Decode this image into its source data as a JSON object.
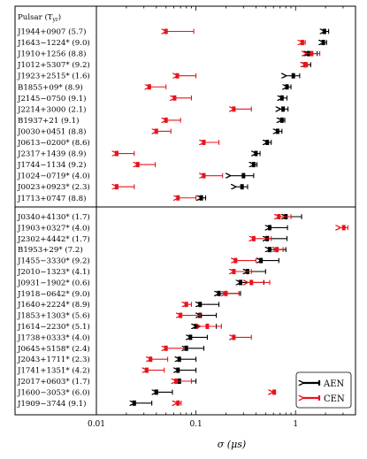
{
  "chart_data": {
    "type": "scatter",
    "xscale": "log",
    "xlim": [
      0.01,
      4
    ],
    "xlabel": "σ (μs)",
    "xticks": [
      "0.01",
      "0.1",
      "1"
    ],
    "header": "Pulsar (T",
    "header_sub": "yr",
    "header_close": ")",
    "legend": {
      "placement": "bottom-right",
      "aen": "AEN",
      "cen": "CEN"
    },
    "colors": {
      "aen": "#000000",
      "cen": "#e8141c"
    },
    "groups": [
      {
        "rows": [
          {
            "label": "J1944+0907 (5.7)",
            "aen": [
              1.95,
              1.95,
              2.15
            ],
            "cen": [
              0.05,
              0.05,
              0.095
            ]
          },
          {
            "label": "J1643−1224* (9.0)",
            "aen": [
              1.9,
              1.9,
              2.05
            ],
            "cen": [
              1.17,
              1.17,
              1.25
            ]
          },
          {
            "label": "J1910+1256 (8.8)",
            "aen": [
              1.35,
              1.35,
              1.65
            ],
            "cen": [
              1.45,
              1.28,
              1.75
            ]
          },
          {
            "label": "J1012+5307* (9.2)",
            "aen": [
              1.25,
              1.25,
              1.42
            ],
            "cen": [
              1.25,
              1.25,
              1.32
            ]
          },
          {
            "label": "J1923+2515* (1.6)",
            "aen": [
              0.95,
              0.8,
              1.1
            ],
            "cen": [
              0.065,
              0.065,
              0.1
            ]
          },
          {
            "label": "B1855+09* (8.9)",
            "aen": [
              0.82,
              0.82,
              0.9
            ],
            "cen": [
              0.034,
              0.034,
              0.05
            ]
          },
          {
            "label": "J2145−0750 (9.1)",
            "aen": [
              0.73,
              0.73,
              0.82
            ],
            "cen": [
              0.061,
              0.061,
              0.09
            ]
          },
          {
            "label": "J2214+3000 (2.1)",
            "aen": [
              0.75,
              0.7,
              0.84
            ],
            "cen": [
              0.24,
              0.24,
              0.36
            ]
          },
          {
            "label": "B1937+21 (9.1)",
            "aen": [
              0.73,
              0.72,
              0.78
            ],
            "cen": [
              0.05,
              0.05,
              0.07
            ]
          },
          {
            "label": "J0030+0451 (8.8)",
            "aen": [
              0.66,
              0.66,
              0.73
            ],
            "cen": [
              0.04,
              0.04,
              0.056
            ]
          },
          {
            "label": "J0613−0200* (8.6)",
            "aen": [
              0.52,
              0.52,
              0.57
            ],
            "cen": [
              0.12,
              0.12,
              0.17
            ]
          },
          {
            "label": "J2317+1439 (8.9)",
            "aen": [
              0.4,
              0.4,
              0.44
            ],
            "cen": [
              0.016,
              0.016,
              0.024
            ]
          },
          {
            "label": "J1744−1134 (9.2)",
            "aen": [
              0.38,
              0.38,
              0.41
            ],
            "cen": [
              0.026,
              0.026,
              0.039
            ]
          },
          {
            "label": "J1024−0719* (4.0)",
            "aen": [
              0.3,
              0.22,
              0.38
            ],
            "cen": [
              0.12,
              0.12,
              0.185
            ]
          },
          {
            "label": "J0023+0923* (2.3)",
            "aen": [
              0.29,
              0.25,
              0.33
            ],
            "cen": [
              0.016,
              0.016,
              0.024
            ]
          },
          {
            "label": "J1713+0747 (8.8)",
            "aen": [
              0.113,
              0.113,
              0.125
            ],
            "cen": [
              0.066,
              0.066,
              0.1
            ]
          }
        ]
      },
      {
        "rows": [
          {
            "label": "J0340+4130* (1.7)",
            "aen": [
              0.8,
              0.8,
              1.15
            ],
            "cen": [
              0.68,
              0.68,
              0.9
            ]
          },
          {
            "label": "J1903+0327* (4.0)",
            "aen": [
              0.55,
              0.55,
              0.83
            ],
            "cen": [
              3.05,
              2.8,
              3.35
            ]
          },
          {
            "label": "J2302+4442* (1.7)",
            "aen": [
              0.52,
              0.52,
              0.82
            ],
            "cen": [
              0.38,
              0.38,
              0.57
            ]
          },
          {
            "label": "B1953+29* (7.2)",
            "aen": [
              0.55,
              0.55,
              0.8
            ],
            "cen": [
              0.65,
              0.65,
              0.75
            ]
          },
          {
            "label": "J1455−3330* (9.2)",
            "aen": [
              0.45,
              0.45,
              0.68
            ],
            "cen": [
              0.25,
              0.25,
              0.4
            ]
          },
          {
            "label": "J2010−1323* (4.1)",
            "aen": [
              0.33,
              0.33,
              0.5
            ],
            "cen": [
              0.24,
              0.24,
              0.36
            ]
          },
          {
            "label": "J0931−1902* (0.6)",
            "aen": [
              0.28,
              0.28,
              0.48
            ],
            "cen": [
              0.36,
              0.33,
              0.55
            ]
          },
          {
            "label": "J1918−0642* (9.0)",
            "aen": [
              0.17,
              0.17,
              0.28
            ],
            "cen": [
              0.2,
              0.2,
              0.27
            ]
          },
          {
            "label": "J1640+2224* (8.9)",
            "aen": [
              0.11,
              0.11,
              0.17
            ],
            "cen": [
              0.08,
              0.08,
              0.09
            ]
          },
          {
            "label": "J1853+1303* (5.6)",
            "aen": [
              0.11,
              0.11,
              0.16
            ],
            "cen": [
              0.07,
              0.07,
              0.11
            ]
          },
          {
            "label": "J1614−2230* (5.1)",
            "aen": [
              0.1,
              0.1,
              0.16
            ],
            "cen": [
              0.13,
              0.11,
              0.18
            ]
          },
          {
            "label": "J1738+0333* (4.0)",
            "aen": [
              0.088,
              0.088,
              0.13
            ],
            "cen": [
              0.24,
              0.24,
              0.36
            ]
          },
          {
            "label": "J0645+5158* (2.4)",
            "aen": [
              0.08,
              0.08,
              0.12
            ],
            "cen": [
              0.05,
              0.05,
              0.075
            ]
          },
          {
            "label": "J2043+1711* (2.3)",
            "aen": [
              0.068,
              0.068,
              0.1
            ],
            "cen": [
              0.035,
              0.035,
              0.052
            ]
          },
          {
            "label": "J1741+1351* (4.2)",
            "aen": [
              0.066,
              0.066,
              0.1
            ],
            "cen": [
              0.032,
              0.032,
              0.048
            ]
          },
          {
            "label": "J2017+0603* (1.7)",
            "aen": [
              0.068,
              0.068,
              0.1
            ],
            "cen": [
              0.063,
              0.063,
              0.09
            ]
          },
          {
            "label": "J1600−3053* (6.0)",
            "aen": [
              0.04,
              0.04,
              0.058
            ],
            "cen": [
              0.61,
              0.59,
              0.63
            ]
          },
          {
            "label": "J1909−3744 (9.1)",
            "aen": [
              0.024,
              0.024,
              0.036
            ],
            "cen": [
              0.066,
              0.064,
              0.071
            ]
          }
        ]
      }
    ]
  }
}
